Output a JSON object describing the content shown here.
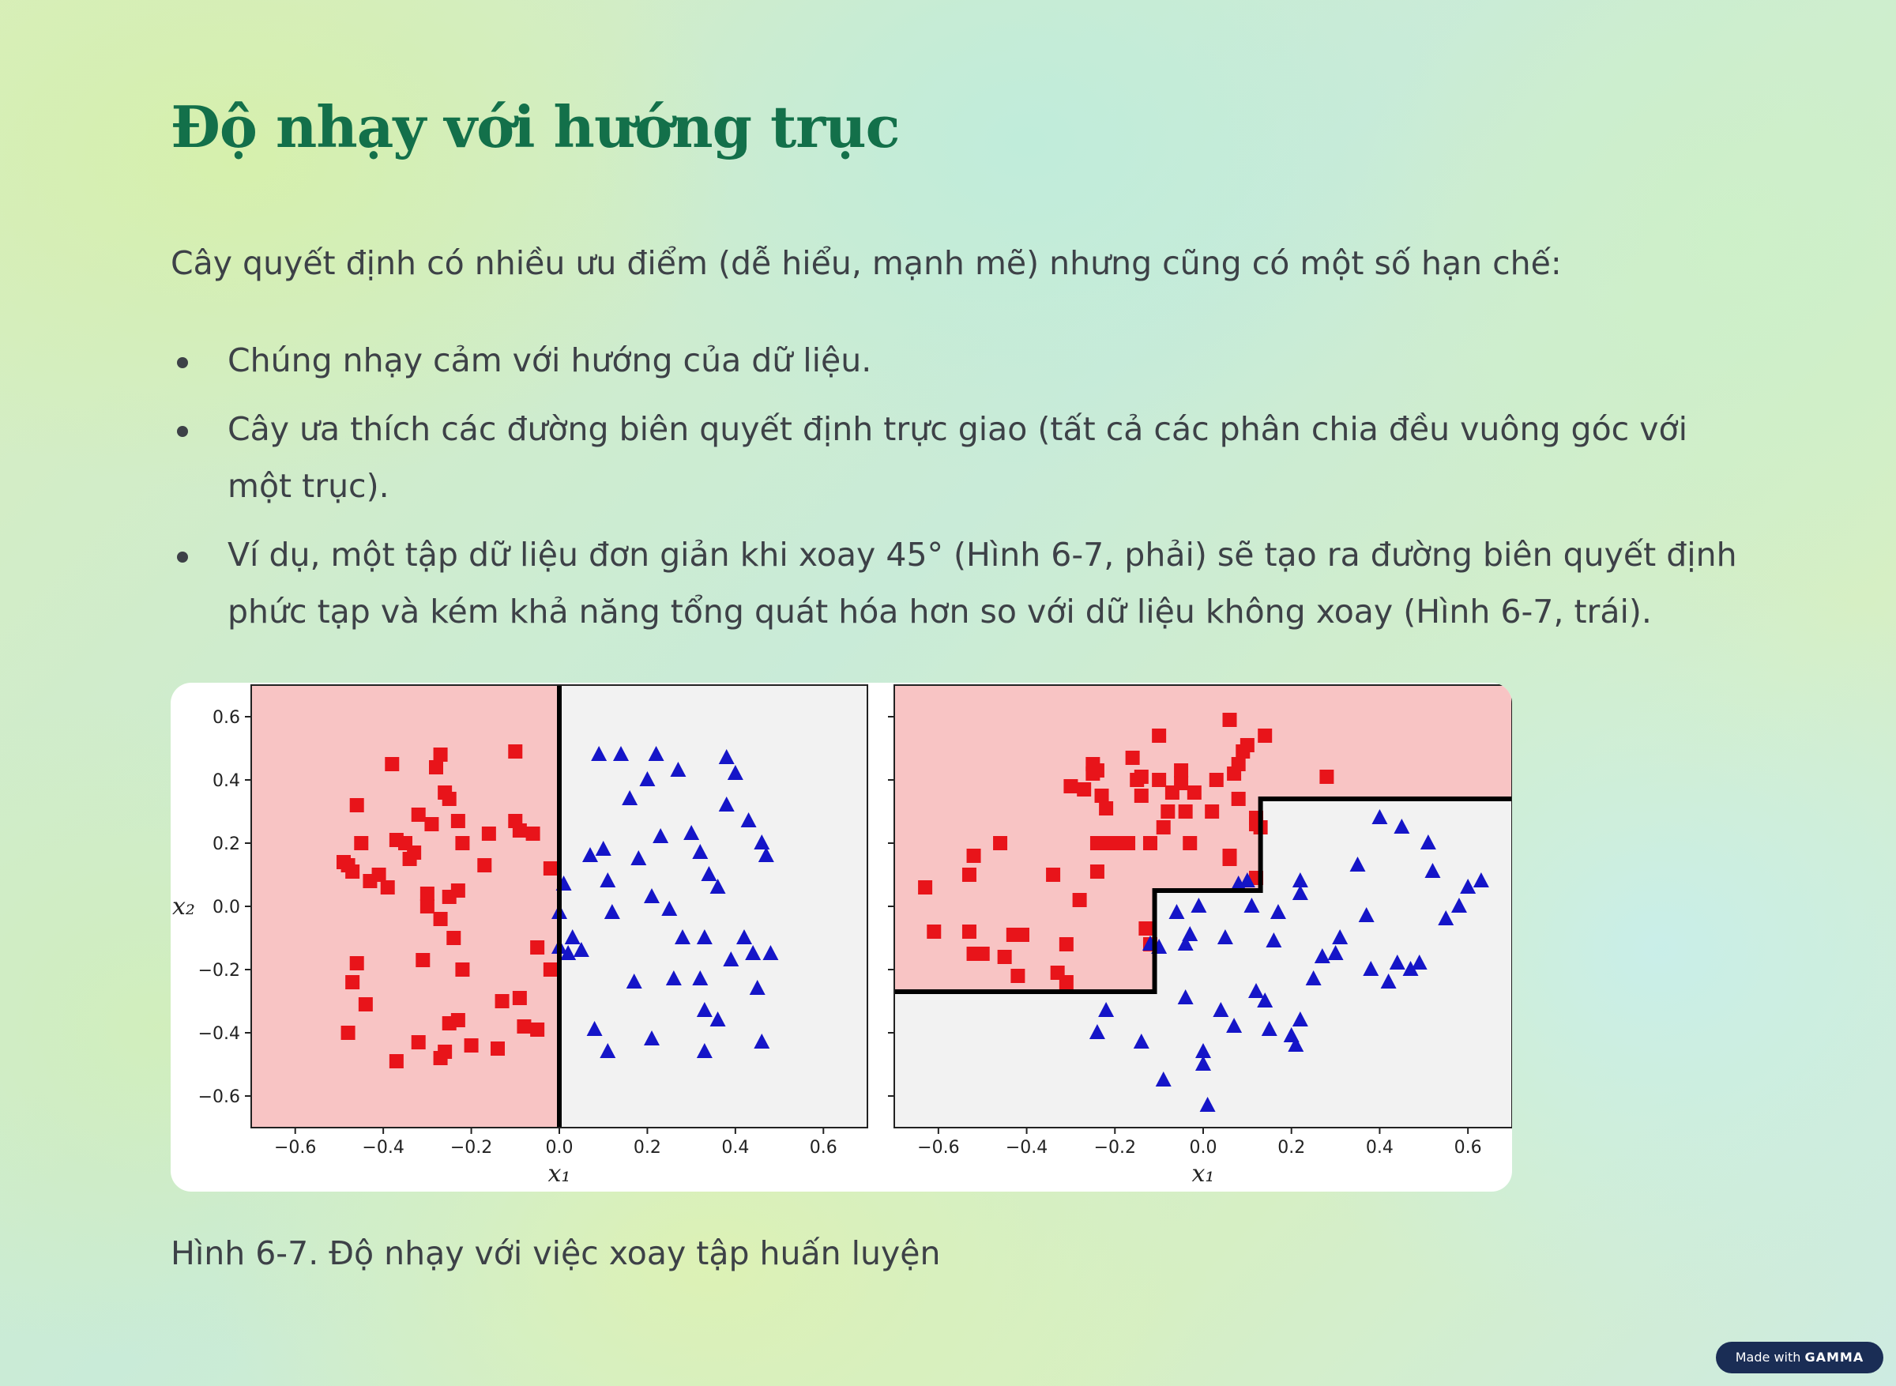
{
  "slide": {
    "title": "Độ nhạy với hướng trục",
    "intro": "Cây quyết định có nhiều ưu điểm (dễ hiểu, mạnh mẽ) nhưng cũng có một số hạn chế:",
    "bullets": [
      "Chúng nhạy cảm với hướng của dữ liệu.",
      "Cây ưa thích các đường biên quyết định trực giao (tất cả các phân chia đều vuông góc với một trục).",
      "Ví dụ, một tập dữ liệu đơn giản khi xoay 45° (Hình 6-7, phải) sẽ tạo ra đường biên quyết định phức tạp và kém khả năng tổng quát hóa hơn so với dữ liệu không xoay (Hình 6-7, trái)."
    ],
    "caption": "Hình 6-7. Độ nhạy với việc xoay tập huấn luyện"
  },
  "badge": {
    "prefix": "Made with",
    "brand": "GAMMA"
  },
  "colors": {
    "title": "#13704a",
    "text": "#3d4147",
    "region_red": "#f8c4c4",
    "region_grey": "#f2f2f2",
    "class_red": "#e8141a",
    "class_blue": "#1515c8",
    "badge_bg": "#1a2d55"
  },
  "chart_data": [
    {
      "type": "scatter",
      "xlabel": "x₁",
      "ylabel": "x₂",
      "xlim": [
        -0.7,
        0.7
      ],
      "ylim": [
        -0.7,
        0.7
      ],
      "xticks": [
        "−0.6",
        "−0.4",
        "−0.2",
        "0.0",
        "0.2",
        "0.4",
        "0.6"
      ],
      "xtick_values": [
        -0.6,
        -0.4,
        -0.2,
        0.0,
        0.2,
        0.4,
        0.6
      ],
      "yticks": [
        "0.6",
        "0.4",
        "0.2",
        "0.0",
        "−0.2",
        "−0.4",
        "−0.6"
      ],
      "ytick_values": [
        0.6,
        0.4,
        0.2,
        0.0,
        -0.2,
        -0.4,
        -0.6
      ],
      "boundary": [
        [
          0.0,
          0.7
        ],
        [
          0.0,
          -0.7
        ]
      ],
      "red_region": "left",
      "series": [
        {
          "marker": "square",
          "color": "#e8141a",
          "points": [
            [
              -0.48,
              0.13
            ],
            [
              -0.47,
              0.11
            ],
            [
              -0.49,
              0.14
            ],
            [
              -0.45,
              0.2
            ],
            [
              -0.46,
              0.32
            ],
            [
              -0.43,
              0.08
            ],
            [
              -0.41,
              0.1
            ],
            [
              -0.39,
              0.06
            ],
            [
              -0.38,
              0.45
            ],
            [
              -0.37,
              0.21
            ],
            [
              -0.35,
              0.2
            ],
            [
              -0.34,
              0.15
            ],
            [
              -0.33,
              0.17
            ],
            [
              -0.32,
              0.29
            ],
            [
              -0.29,
              0.26
            ],
            [
              -0.28,
              0.44
            ],
            [
              -0.27,
              0.48
            ],
            [
              -0.26,
              0.36
            ],
            [
              -0.25,
              0.34
            ],
            [
              -0.23,
              0.27
            ],
            [
              -0.22,
              0.2
            ],
            [
              -0.3,
              0.0
            ],
            [
              -0.3,
              0.04
            ],
            [
              -0.27,
              -0.04
            ],
            [
              -0.25,
              0.03
            ],
            [
              -0.23,
              0.05
            ],
            [
              -0.24,
              -0.1
            ],
            [
              -0.31,
              -0.17
            ],
            [
              -0.22,
              -0.2
            ],
            [
              -0.17,
              0.13
            ],
            [
              -0.16,
              0.23
            ],
            [
              -0.1,
              0.27
            ],
            [
              -0.09,
              0.24
            ],
            [
              -0.06,
              0.23
            ],
            [
              -0.1,
              0.49
            ],
            [
              -0.02,
              0.12
            ],
            [
              -0.05,
              -0.13
            ],
            [
              -0.02,
              -0.2
            ],
            [
              -0.48,
              -0.4
            ],
            [
              -0.47,
              -0.24
            ],
            [
              -0.46,
              -0.18
            ],
            [
              -0.44,
              -0.31
            ],
            [
              -0.37,
              -0.49
            ],
            [
              -0.32,
              -0.43
            ],
            [
              -0.27,
              -0.48
            ],
            [
              -0.26,
              -0.46
            ],
            [
              -0.25,
              -0.37
            ],
            [
              -0.23,
              -0.36
            ],
            [
              -0.2,
              -0.44
            ],
            [
              -0.14,
              -0.45
            ],
            [
              -0.13,
              -0.3
            ],
            [
              -0.09,
              -0.29
            ],
            [
              -0.08,
              -0.38
            ],
            [
              -0.05,
              -0.39
            ]
          ]
        },
        {
          "marker": "triangle",
          "color": "#1515c8",
          "points": [
            [
              0.0,
              -0.02
            ],
            [
              0.01,
              0.07
            ],
            [
              0.03,
              -0.1
            ],
            [
              0.02,
              -0.15
            ],
            [
              0.0,
              -0.13
            ],
            [
              0.05,
              -0.14
            ],
            [
              0.07,
              0.16
            ],
            [
              0.09,
              0.48
            ],
            [
              0.1,
              0.18
            ],
            [
              0.11,
              0.08
            ],
            [
              0.12,
              -0.02
            ],
            [
              0.14,
              0.48
            ],
            [
              0.16,
              0.34
            ],
            [
              0.18,
              0.15
            ],
            [
              0.2,
              0.4
            ],
            [
              0.22,
              0.48
            ],
            [
              0.21,
              0.03
            ],
            [
              0.23,
              0.22
            ],
            [
              0.25,
              -0.01
            ],
            [
              0.27,
              0.43
            ],
            [
              0.28,
              -0.1
            ],
            [
              0.3,
              0.23
            ],
            [
              0.32,
              0.17
            ],
            [
              0.33,
              -0.1
            ],
            [
              0.34,
              0.1
            ],
            [
              0.36,
              0.06
            ],
            [
              0.38,
              0.47
            ],
            [
              0.38,
              0.32
            ],
            [
              0.39,
              -0.17
            ],
            [
              0.4,
              0.42
            ],
            [
              0.42,
              -0.1
            ],
            [
              0.43,
              0.27
            ],
            [
              0.44,
              -0.15
            ],
            [
              0.45,
              -0.26
            ],
            [
              0.46,
              0.2
            ],
            [
              0.47,
              0.16
            ],
            [
              0.48,
              -0.15
            ],
            [
              0.08,
              -0.39
            ],
            [
              0.11,
              -0.46
            ],
            [
              0.17,
              -0.24
            ],
            [
              0.21,
              -0.42
            ],
            [
              0.26,
              -0.23
            ],
            [
              0.32,
              -0.23
            ],
            [
              0.33,
              -0.46
            ],
            [
              0.33,
              -0.33
            ],
            [
              0.36,
              -0.36
            ],
            [
              0.46,
              -0.43
            ]
          ]
        }
      ]
    },
    {
      "type": "scatter",
      "xlabel": "x₁",
      "ylabel": "",
      "xlim": [
        -0.7,
        0.7
      ],
      "ylim": [
        -0.7,
        0.7
      ],
      "xticks": [
        "−0.6",
        "−0.4",
        "−0.2",
        "0.0",
        "0.2",
        "0.4",
        "0.6"
      ],
      "xtick_values": [
        -0.6,
        -0.4,
        -0.2,
        0.0,
        0.2,
        0.4,
        0.6
      ],
      "boundary": [
        [
          -0.7,
          -0.27
        ],
        [
          -0.11,
          -0.27
        ],
        [
          -0.11,
          0.05
        ],
        [
          0.13,
          0.05
        ],
        [
          0.13,
          0.34
        ],
        [
          0.7,
          0.34
        ]
      ],
      "red_region": "above",
      "series": [
        {
          "marker": "square",
          "color": "#e8141a",
          "points": [
            [
              -0.63,
              0.06
            ],
            [
              -0.61,
              -0.08
            ],
            [
              -0.53,
              0.1
            ],
            [
              -0.52,
              0.16
            ],
            [
              -0.53,
              -0.08
            ],
            [
              -0.52,
              -0.15
            ],
            [
              -0.5,
              -0.15
            ],
            [
              -0.46,
              0.2
            ],
            [
              -0.45,
              -0.16
            ],
            [
              -0.43,
              -0.09
            ],
            [
              -0.41,
              -0.09
            ],
            [
              -0.42,
              -0.22
            ],
            [
              -0.34,
              0.1
            ],
            [
              -0.33,
              -0.21
            ],
            [
              -0.31,
              -0.24
            ],
            [
              -0.31,
              -0.12
            ],
            [
              -0.3,
              0.38
            ],
            [
              -0.28,
              0.02
            ],
            [
              -0.27,
              0.37
            ],
            [
              -0.25,
              0.42
            ],
            [
              -0.25,
              0.45
            ],
            [
              -0.24,
              0.43
            ],
            [
              -0.24,
              0.11
            ],
            [
              -0.24,
              0.2
            ],
            [
              -0.23,
              0.35
            ],
            [
              -0.22,
              0.31
            ],
            [
              -0.22,
              0.2
            ],
            [
              -0.2,
              0.2
            ],
            [
              -0.16,
              0.47
            ],
            [
              -0.17,
              0.2
            ],
            [
              -0.15,
              0.4
            ],
            [
              -0.14,
              0.41
            ],
            [
              -0.14,
              0.35
            ],
            [
              -0.12,
              0.2
            ],
            [
              -0.1,
              0.4
            ],
            [
              -0.1,
              0.54
            ],
            [
              -0.09,
              0.25
            ],
            [
              -0.07,
              0.36
            ],
            [
              -0.05,
              0.43
            ],
            [
              -0.04,
              0.3
            ],
            [
              -0.05,
              0.39
            ],
            [
              -0.02,
              0.36
            ],
            [
              -0.03,
              0.2
            ],
            [
              -0.13,
              -0.07
            ],
            [
              -0.12,
              -0.12
            ],
            [
              -0.08,
              0.3
            ],
            [
              0.02,
              0.3
            ],
            [
              0.03,
              0.4
            ],
            [
              0.06,
              0.59
            ],
            [
              0.07,
              0.42
            ],
            [
              0.08,
              0.45
            ],
            [
              0.09,
              0.49
            ],
            [
              0.1,
              0.51
            ],
            [
              0.08,
              0.34
            ],
            [
              0.12,
              0.28
            ],
            [
              0.12,
              0.26
            ],
            [
              0.13,
              0.25
            ],
            [
              0.14,
              0.54
            ],
            [
              0.06,
              0.16
            ],
            [
              0.06,
              0.15
            ],
            [
              0.12,
              0.09
            ],
            [
              0.28,
              0.41
            ]
          ]
        },
        {
          "marker": "triangle",
          "color": "#1515c8",
          "points": [
            [
              -0.12,
              -0.12
            ],
            [
              -0.1,
              -0.13
            ],
            [
              -0.06,
              -0.02
            ],
            [
              -0.04,
              -0.12
            ],
            [
              -0.03,
              -0.09
            ],
            [
              -0.04,
              -0.29
            ],
            [
              -0.01,
              0.0
            ],
            [
              0.0,
              -0.46
            ],
            [
              0.0,
              -0.5
            ],
            [
              0.01,
              -0.63
            ],
            [
              0.04,
              -0.33
            ],
            [
              0.05,
              -0.1
            ],
            [
              0.07,
              -0.38
            ],
            [
              0.08,
              0.07
            ],
            [
              0.1,
              0.08
            ],
            [
              0.11,
              0.0
            ],
            [
              0.12,
              -0.27
            ],
            [
              0.14,
              -0.3
            ],
            [
              0.15,
              -0.39
            ],
            [
              0.16,
              -0.11
            ],
            [
              0.17,
              -0.02
            ],
            [
              0.2,
              -0.41
            ],
            [
              0.21,
              -0.44
            ],
            [
              0.22,
              0.04
            ],
            [
              0.22,
              0.08
            ],
            [
              0.22,
              -0.36
            ],
            [
              0.25,
              -0.23
            ],
            [
              0.27,
              -0.16
            ],
            [
              0.3,
              -0.15
            ],
            [
              0.31,
              -0.1
            ],
            [
              0.35,
              0.13
            ],
            [
              0.37,
              -0.03
            ],
            [
              0.38,
              -0.2
            ],
            [
              0.4,
              0.28
            ],
            [
              0.42,
              -0.24
            ],
            [
              0.45,
              0.25
            ],
            [
              0.47,
              -0.2
            ],
            [
              0.51,
              0.2
            ],
            [
              0.52,
              0.11
            ],
            [
              0.55,
              -0.04
            ],
            [
              0.58,
              0.0
            ],
            [
              0.6,
              0.06
            ],
            [
              0.63,
              0.08
            ],
            [
              0.44,
              -0.18
            ],
            [
              0.49,
              -0.18
            ],
            [
              -0.24,
              -0.4
            ],
            [
              -0.22,
              -0.33
            ],
            [
              -0.14,
              -0.43
            ],
            [
              -0.09,
              -0.55
            ]
          ]
        }
      ]
    }
  ]
}
